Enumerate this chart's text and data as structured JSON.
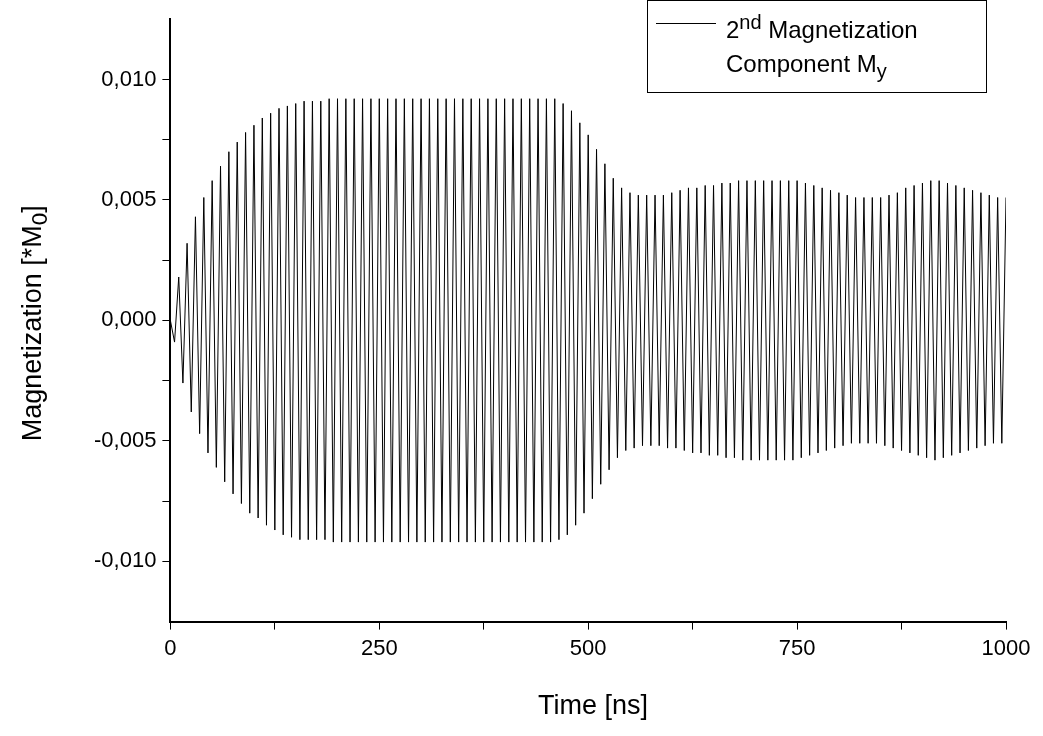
{
  "chart_data": {
    "type": "line",
    "xlabel": "Time [ns]",
    "ylabel": "Magnetization [*M$_{0}$]",
    "xlim": [
      0,
      1000
    ],
    "ylim": [
      -0.0125,
      0.0125
    ],
    "xticks": [
      0,
      {
        "value": 125,
        "label": null
      },
      250,
      {
        "value": 375,
        "label": null
      },
      500,
      {
        "value": 625,
        "label": null
      },
      750,
      {
        "value": 875,
        "label": null
      },
      1000
    ],
    "yticks": [
      {
        "value": -0.01,
        "label": "-0,010"
      },
      {
        "value": -0.0075,
        "label": null
      },
      {
        "value": -0.005,
        "label": "-0,005"
      },
      {
        "value": -0.0025,
        "label": null
      },
      {
        "value": 0,
        "label": "0,000"
      },
      {
        "value": 0.0025,
        "label": null
      },
      {
        "value": 0.005,
        "label": "0,005"
      },
      {
        "value": 0.0075,
        "label": null
      },
      {
        "value": 0.01,
        "label": "0,010"
      }
    ],
    "grid": false,
    "legend": "top right",
    "marker": "none",
    "line_style": "solid",
    "series": [
      {
        "name": "2$^{nd}$ Magnetization Component M$_{y}$",
        "color": "#000000",
        "x": [
          0,
          5,
          10,
          15,
          20,
          25,
          30,
          35,
          40,
          45,
          50,
          55,
          60,
          65,
          70,
          75,
          80,
          85,
          90,
          95,
          100,
          105,
          110,
          115,
          120,
          125,
          130,
          135,
          140,
          145,
          150,
          155,
          160,
          165,
          170,
          175,
          180,
          185,
          190,
          195,
          200,
          205,
          210,
          215,
          220,
          225,
          230,
          235,
          240,
          245,
          250,
          255,
          260,
          265,
          270,
          275,
          280,
          285,
          290,
          295,
          300,
          305,
          310,
          315,
          320,
          325,
          330,
          335,
          340,
          345,
          350,
          355,
          360,
          365,
          370,
          375,
          380,
          385,
          390,
          395,
          400,
          405,
          410,
          415,
          420,
          425,
          430,
          435,
          440,
          445,
          450,
          455,
          460,
          465,
          470,
          475,
          480,
          485,
          490,
          495,
          500,
          505,
          510,
          515,
          520,
          525,
          530,
          535,
          540,
          545,
          550,
          555,
          560,
          565,
          570,
          575,
          580,
          585,
          590,
          595,
          600,
          605,
          610,
          615,
          620,
          625,
          630,
          635,
          640,
          645,
          650,
          655,
          660,
          665,
          670,
          675,
          680,
          685,
          690,
          695,
          700,
          705,
          710,
          715,
          720,
          725,
          730,
          735,
          740,
          745,
          750,
          755,
          760,
          765,
          770,
          775,
          780,
          785,
          790,
          795,
          800,
          805,
          810,
          815,
          820,
          825,
          830,
          835,
          840,
          845,
          850,
          855,
          860,
          865,
          870,
          875,
          880,
          885,
          890,
          895,
          900,
          905,
          910,
          915,
          920,
          925,
          930,
          935,
          940,
          945,
          950,
          955,
          960,
          965,
          970,
          975,
          980,
          985,
          990,
          995,
          1000
        ],
        "values": [
          0,
          -0.0009,
          0.0018,
          -0.0026,
          0.0032,
          -0.0038,
          0.0043,
          -0.0047,
          0.0051,
          -0.0055,
          0.0058,
          -0.0061,
          0.0064,
          -0.0067,
          0.007,
          -0.0072,
          0.0074,
          -0.0076,
          0.0078,
          -0.008,
          0.0081,
          -0.0082,
          0.0084,
          -0.0085,
          0.0086,
          -0.0087,
          0.0088,
          -0.0089,
          0.0089,
          -0.009,
          0.009,
          -0.0091,
          0.0091,
          -0.0091,
          0.0091,
          -0.0091,
          0.0091,
          -0.0091,
          0.0092,
          -0.0092,
          0.0092,
          -0.0092,
          0.0092,
          -0.0092,
          0.0092,
          -0.0092,
          0.0092,
          -0.0092,
          0.0092,
          -0.0092,
          0.0092,
          -0.0092,
          0.0092,
          -0.0092,
          0.0092,
          -0.0092,
          0.0092,
          -0.0092,
          0.0092,
          -0.0092,
          0.0092,
          -0.0092,
          0.0092,
          -0.0092,
          0.0092,
          -0.0092,
          0.0092,
          -0.0092,
          0.0092,
          -0.0092,
          0.0092,
          -0.0092,
          0.0092,
          -0.0092,
          0.0092,
          -0.0092,
          0.0092,
          -0.0092,
          0.0092,
          -0.0092,
          0.0092,
          -0.0092,
          0.0092,
          -0.0092,
          0.0092,
          -0.0092,
          0.0092,
          -0.0092,
          0.0092,
          -0.0092,
          0.0092,
          -0.0092,
          0.0092,
          -0.0091,
          0.009,
          -0.0089,
          0.0087,
          -0.0085,
          0.0082,
          -0.008,
          0.0077,
          -0.0074,
          0.0071,
          -0.0068,
          0.0065,
          -0.0062,
          0.0059,
          -0.0057,
          0.0055,
          -0.0054,
          0.0053,
          -0.0053,
          0.0052,
          -0.0052,
          0.0052,
          -0.0052,
          0.0052,
          -0.0052,
          0.0052,
          -0.0053,
          0.0053,
          -0.0053,
          0.0054,
          -0.0054,
          0.0055,
          -0.0055,
          0.0055,
          -0.0055,
          0.0056,
          -0.0056,
          0.0056,
          -0.0056,
          0.0057,
          -0.0057,
          0.0057,
          -0.0057,
          0.0058,
          -0.0058,
          0.0058,
          -0.0058,
          0.0058,
          -0.0058,
          0.0058,
          -0.0058,
          0.0058,
          -0.0058,
          0.0058,
          -0.0058,
          0.0058,
          -0.0058,
          0.0058,
          -0.0057,
          0.0057,
          -0.0056,
          0.0056,
          -0.0055,
          0.0055,
          -0.0054,
          0.0054,
          -0.0053,
          0.0053,
          -0.0052,
          0.0052,
          -0.0051,
          0.0051,
          -0.0051,
          0.0051,
          -0.0051,
          0.0051,
          -0.0051,
          0.0051,
          -0.0052,
          0.0052,
          -0.0053,
          0.0053,
          -0.0054,
          0.0055,
          -0.0055,
          0.0056,
          -0.0056,
          0.0057,
          -0.0057,
          0.0058,
          -0.0058,
          0.0058,
          -0.0057,
          0.0057,
          -0.0056,
          0.0056,
          -0.0055,
          0.0055,
          -0.0054,
          0.0054,
          -0.0053,
          0.0053,
          -0.0052,
          0.0052,
          -0.0051,
          0.0051,
          -0.0051,
          0.0051
        ]
      }
    ]
  }
}
